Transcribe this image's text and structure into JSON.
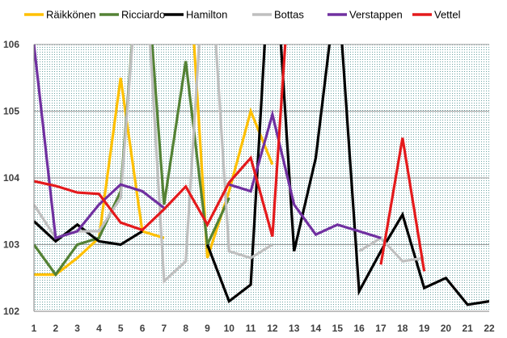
{
  "chart_data": {
    "type": "line",
    "title": "",
    "xlabel": "",
    "ylabel": "",
    "x": [
      1,
      2,
      3,
      4,
      5,
      6,
      7,
      8,
      9,
      10,
      11,
      12,
      13,
      14,
      15,
      16,
      17,
      18,
      19,
      20,
      21,
      22
    ],
    "xlim": [
      1,
      22
    ],
    "ylim": [
      102,
      106
    ],
    "yticks": [
      102,
      103,
      104,
      105,
      106
    ],
    "background": "dotted",
    "legend_position": "top",
    "series": [
      {
        "name": "Räikkönen",
        "color": "#FFC000",
        "values": [
          102.55,
          102.55,
          102.8,
          103.1,
          105.5,
          103.2,
          103.1,
          108.0,
          102.8,
          103.8,
          105.0,
          104.2,
          null,
          null,
          null,
          null,
          null,
          null,
          null,
          null,
          null,
          null
        ],
        "segments": [
          [
            1,
            7
          ],
          [
            8,
            12
          ]
        ]
      },
      {
        "name": "Ricciardo",
        "color": "#548235",
        "values": [
          103.0,
          102.55,
          103.0,
          103.1,
          103.8,
          108.0,
          103.6,
          105.75,
          103.0,
          103.7,
          null,
          null,
          null,
          null,
          null,
          null,
          null,
          null,
          null,
          null,
          null,
          null
        ]
      },
      {
        "name": "Hamilton",
        "color": "#000000",
        "values": [
          103.35,
          103.05,
          103.3,
          103.05,
          103.0,
          103.2,
          null,
          null,
          103.0,
          102.15,
          102.4,
          108.0,
          102.9,
          104.3,
          107.0,
          102.3,
          102.9,
          103.45,
          102.35,
          102.5,
          102.1,
          102.15
        ],
        "segments": [
          [
            1,
            6
          ],
          [
            9,
            22
          ]
        ]
      },
      {
        "name": "Bottas",
        "color": "#BFBFBF",
        "values": [
          103.6,
          103.1,
          103.2,
          103.2,
          103.7,
          108.0,
          102.45,
          102.75,
          108.0,
          102.9,
          102.8,
          103.0,
          104.1,
          null,
          null,
          102.9,
          103.1,
          102.75,
          102.8,
          null,
          null,
          null
        ],
        "segments": [
          [
            1,
            12
          ],
          [
            13,
            13
          ],
          [
            16,
            19
          ]
        ]
      },
      {
        "name": "Verstappen",
        "color": "#7030A0",
        "values": [
          106.0,
          103.1,
          103.2,
          103.6,
          103.9,
          103.8,
          103.55,
          null,
          null,
          103.9,
          103.8,
          104.95,
          103.6,
          103.15,
          103.3,
          103.2,
          103.1,
          null,
          null,
          null,
          null,
          null
        ],
        "segments": [
          [
            1,
            7
          ],
          [
            10,
            17
          ]
        ]
      },
      {
        "name": "Vettel",
        "color": "#E41A1C",
        "values": [
          103.95,
          103.88,
          103.78,
          103.76,
          103.33,
          103.22,
          103.53,
          103.87,
          103.3,
          103.93,
          104.3,
          103.12,
          108.0,
          null,
          null,
          null,
          102.7,
          104.6,
          102.6,
          null,
          null,
          null
        ],
        "segments": [
          [
            1,
            12
          ],
          [
            12,
            14
          ],
          [
            17,
            19
          ]
        ]
      }
    ]
  },
  "legend": {
    "items": [
      {
        "label": "Räikkönen",
        "color": "#FFC000"
      },
      {
        "label": "Ricciardo",
        "color": "#548235"
      },
      {
        "label": "Hamilton",
        "color": "#000000"
      },
      {
        "label": "Bottas",
        "color": "#BFBFBF"
      },
      {
        "label": "Verstappen",
        "color": "#7030A0"
      },
      {
        "label": "Vettel",
        "color": "#E41A1C"
      }
    ]
  }
}
